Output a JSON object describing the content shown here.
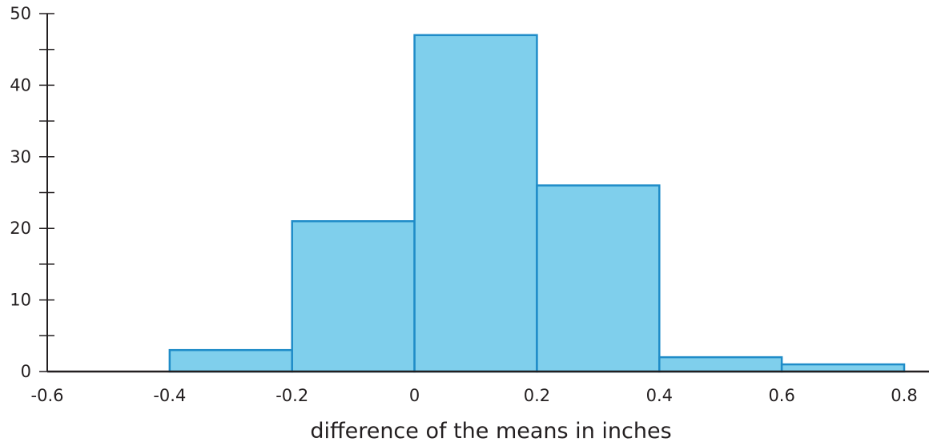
{
  "chart_data": {
    "type": "bar",
    "subtype": "histogram",
    "xlabel": "difference of the means in inches",
    "ylabel": "",
    "title": "",
    "xlim": [
      -0.6,
      0.8
    ],
    "ylim": [
      0,
      50
    ],
    "x_ticks": [
      -0.6,
      -0.4,
      -0.2,
      0,
      0.2,
      0.4,
      0.6,
      0.8
    ],
    "x_tick_labels": [
      "-0.6",
      "-0.4",
      "-0.2",
      "0",
      "0.2",
      "0.4",
      "0.6",
      "0.8"
    ],
    "y_major_ticks": [
      0,
      10,
      20,
      30,
      40,
      50
    ],
    "y_tick_labels": [
      "0",
      "10",
      "20",
      "30",
      "40",
      "50"
    ],
    "y_minor_ticks": [
      5,
      15,
      25,
      35,
      45
    ],
    "bins": [
      {
        "start": -0.4,
        "end": -0.2,
        "value": 3
      },
      {
        "start": -0.2,
        "end": 0.0,
        "value": 21
      },
      {
        "start": 0.0,
        "end": 0.2,
        "value": 47
      },
      {
        "start": 0.2,
        "end": 0.4,
        "value": 26
      },
      {
        "start": 0.4,
        "end": 0.6,
        "value": 2
      },
      {
        "start": 0.6,
        "end": 0.8,
        "value": 1
      }
    ],
    "colors": {
      "bar_fill": "#7fcfec",
      "bar_stroke": "#1f8cc8",
      "axis": "#231f20",
      "text": "#231f20"
    },
    "grid": false,
    "legend": "none"
  }
}
